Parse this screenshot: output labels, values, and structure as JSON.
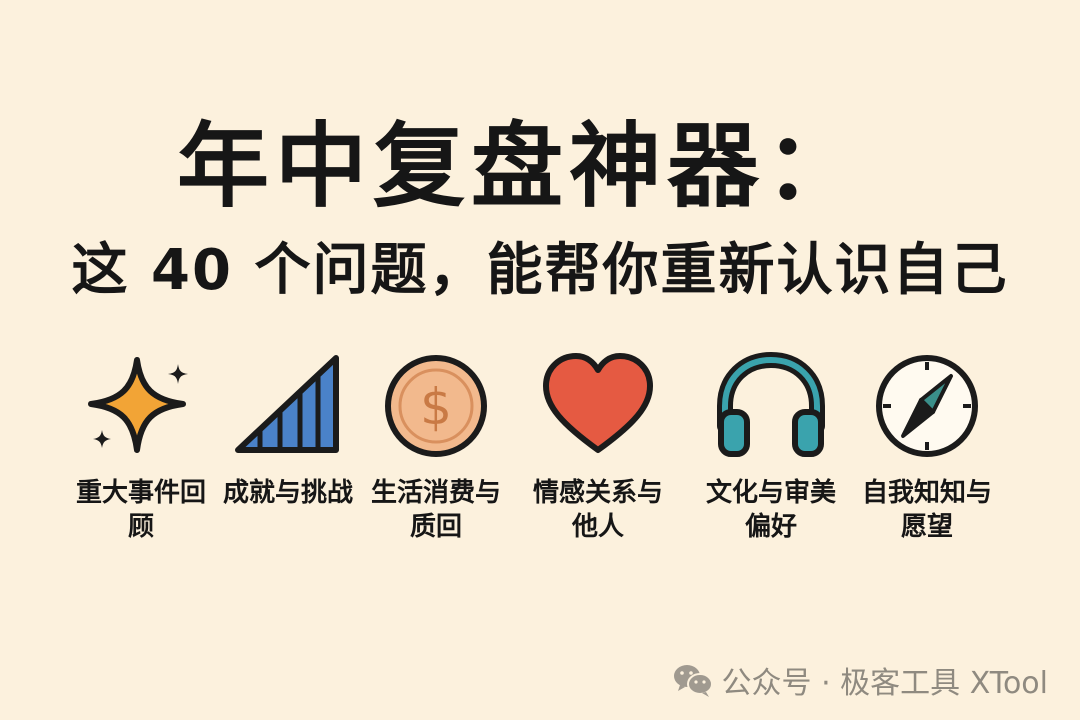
{
  "header": {
    "title": "年中复盘神器：",
    "subtitle": "这 40 个问题，能帮你重新认识自己"
  },
  "categories": [
    {
      "label": "重大事件回顾",
      "icon": "sparkle-icon",
      "color": "#f2a436"
    },
    {
      "label": "成就与挑战",
      "icon": "bar-chart-icon",
      "color": "#4a82c9"
    },
    {
      "label": "生活消费与质回",
      "icon": "dollar-coin-icon",
      "color": "#f2b98d"
    },
    {
      "label": "情感关系与他人",
      "icon": "heart-icon",
      "color": "#e55a42"
    },
    {
      "label": "文化与审美偏好",
      "icon": "headphones-icon",
      "color": "#3aa3ad"
    },
    {
      "label": "自我知知与愿望",
      "icon": "compass-icon",
      "color": "#3a8f8a"
    }
  ],
  "footer": {
    "icon": "wechat-icon",
    "text": "公众号 · 极客工具 XTool"
  }
}
